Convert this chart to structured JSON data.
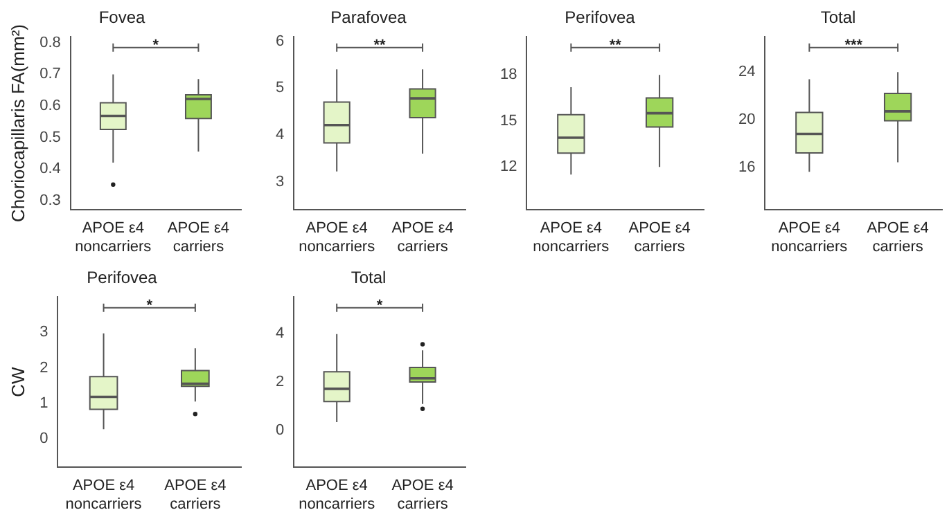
{
  "chart_data": [
    {
      "type": "box",
      "title": "Fovea",
      "ylabel": "Choriocapillaris FA(mm²)",
      "categories": [
        "APOE ε4 noncarriers",
        "APOE ε4 carriers"
      ],
      "colors": [
        "#e4f5c8",
        "#9ed65a"
      ],
      "ylim": [
        0.27,
        0.82
      ],
      "yticks": [
        0.3,
        0.4,
        0.5,
        0.6,
        0.7,
        0.8
      ],
      "annotations": [
        "*"
      ],
      "boxes": [
        {
          "low": 0.42,
          "q1": 0.525,
          "median": 0.568,
          "q3": 0.61,
          "high": 0.7,
          "outliers": [
            0.35
          ]
        },
        {
          "low": 0.455,
          "q1": 0.56,
          "median": 0.622,
          "q3": 0.635,
          "high": 0.685
        }
      ]
    },
    {
      "type": "box",
      "title": "Parafovea",
      "categories": [
        "APOE ε4 noncarriers",
        "APOE ε4 carriers"
      ],
      "colors": [
        "#e4f5c8",
        "#9ed65a"
      ],
      "ylim": [
        2.4,
        6.1
      ],
      "yticks": [
        3,
        4,
        5,
        6
      ],
      "annotations": [
        "**"
      ],
      "boxes": [
        {
          "low": 3.22,
          "q1": 3.83,
          "median": 4.21,
          "q3": 4.7,
          "high": 5.4
        },
        {
          "low": 3.6,
          "q1": 4.37,
          "median": 4.78,
          "q3": 4.98,
          "high": 5.4
        }
      ]
    },
    {
      "type": "box",
      "title": "Perifovea",
      "categories": [
        "APOE ε4 noncarriers",
        "APOE ε4 carriers"
      ],
      "colors": [
        "#e4f5c8",
        "#9ed65a"
      ],
      "ylim": [
        9.2,
        20.5
      ],
      "yticks": [
        12,
        15,
        18
      ],
      "annotations": [
        "**"
      ],
      "boxes": [
        {
          "low": 11.5,
          "q1": 12.9,
          "median": 13.9,
          "q3": 15.4,
          "high": 17.2
        },
        {
          "low": 12,
          "q1": 14.6,
          "median": 15.5,
          "q3": 16.5,
          "high": 18
        }
      ]
    },
    {
      "type": "box",
      "title": "Total",
      "categories": [
        "APOE ε4 noncarriers",
        "APOE ε4 carriers"
      ],
      "colors": [
        "#e4f5c8",
        "#9ed65a"
      ],
      "ylim": [
        12.4,
        27
      ],
      "yticks": [
        16,
        20,
        24
      ],
      "annotations": [
        "***"
      ],
      "boxes": [
        {
          "low": 15.6,
          "q1": 17.2,
          "median": 18.8,
          "q3": 20.6,
          "high": 23.4
        },
        {
          "low": 16.4,
          "q1": 19.9,
          "median": 20.7,
          "q3": 22.2,
          "high": 24
        }
      ]
    },
    {
      "type": "box",
      "title": "Perifovea",
      "ylabel": "CW",
      "categories": [
        "APOE ε4 noncarriers",
        "APOE ε4 carriers"
      ],
      "colors": [
        "#e4f5c8",
        "#9ed65a"
      ],
      "ylim": [
        -0.8,
        4
      ],
      "yticks": [
        0,
        1,
        2,
        3
      ],
      "annotations": [
        "*"
      ],
      "boxes": [
        {
          "low": 0.27,
          "q1": 0.83,
          "median": 1.18,
          "q3": 1.75,
          "high": 2.97
        },
        {
          "low": 1.05,
          "q1": 1.48,
          "median": 1.55,
          "q3": 1.92,
          "high": 2.55,
          "outliers": [
            0.7
          ]
        }
      ]
    },
    {
      "type": "box",
      "title": "Total",
      "categories": [
        "APOE ε4 noncarriers",
        "APOE ε4 carriers"
      ],
      "colors": [
        "#e4f5c8",
        "#9ed65a"
      ],
      "ylim": [
        -1.5,
        5.5
      ],
      "yticks": [
        0,
        2,
        4
      ],
      "annotations": [
        "*"
      ],
      "boxes": [
        {
          "low": 0.35,
          "q1": 1.2,
          "median": 1.72,
          "q3": 2.42,
          "high": 3.97
        },
        {
          "low": 1.1,
          "q1": 2,
          "median": 2.15,
          "q3": 2.6,
          "high": 3.3,
          "outliers": [
            3.55,
            0.9
          ]
        }
      ]
    }
  ]
}
